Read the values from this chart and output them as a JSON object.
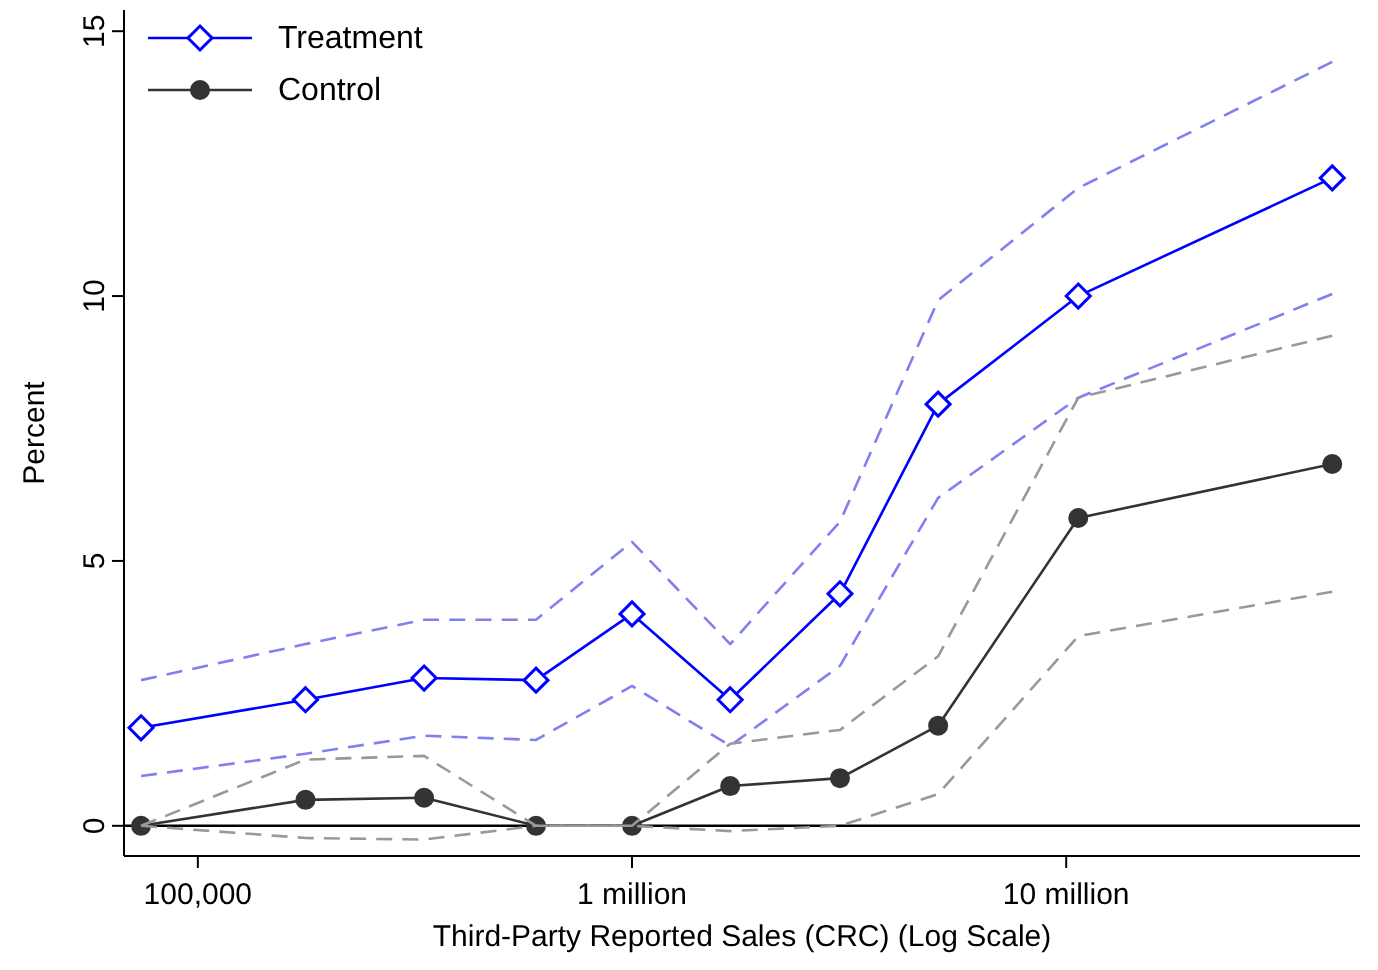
{
  "chart_data": {
    "type": "line",
    "xlabel": "Third-Party Reported Sales (CRC) (Log Scale)",
    "ylabel": "Percent",
    "log": "x",
    "x": [
      74000,
      177000,
      332000,
      601000,
      1000000,
      1683000,
      3013000,
      5070000,
      10660000,
      41000000
    ],
    "xlim": [
      67600,
      47500000
    ],
    "xticks": [
      {
        "value": 100000,
        "label": "100,000"
      },
      {
        "value": 1000000,
        "label": "1 million"
      },
      {
        "value": 10000000,
        "label": "10 million"
      }
    ],
    "ylim": [
      -0.57,
      15.4
    ],
    "yticks": [
      0,
      5,
      10,
      15
    ],
    "grid": false,
    "legend": "top left",
    "ref_lines": [
      {
        "axis": "y",
        "value": 0,
        "color": "#000000"
      }
    ],
    "series": [
      {
        "name": "Treatment",
        "color": "#0000ff",
        "marker": "diamond",
        "line_style": "solid",
        "values": [
          1.85,
          2.38,
          2.79,
          2.75,
          4.0,
          2.38,
          4.38,
          7.96,
          10.0,
          12.23
        ]
      },
      {
        "name": "Control",
        "color": "#333333",
        "marker": "circle",
        "line_style": "solid",
        "values": [
          0,
          0.49,
          0.53,
          0,
          0,
          0.75,
          0.9,
          1.89,
          5.81,
          6.83
        ]
      },
      {
        "color": "#8080f0",
        "marker": "none",
        "line_style": "dashed",
        "values": [
          2.75,
          3.43,
          3.89,
          3.89,
          5.36,
          3.43,
          5.74,
          9.92,
          12.04,
          14.42
        ]
      },
      {
        "color": "#8080f0",
        "marker": "none",
        "line_style": "dashed",
        "values": [
          0.94,
          1.36,
          1.7,
          1.62,
          2.64,
          1.51,
          3.02,
          6.19,
          8.08,
          10.04
        ]
      },
      {
        "color": "#999999",
        "marker": "none",
        "line_style": "dashed",
        "values": [
          0,
          1.25,
          1.32,
          0,
          0,
          1.55,
          1.81,
          3.2,
          8.08,
          9.25
        ]
      },
      {
        "color": "#999999",
        "marker": "none",
        "line_style": "dashed",
        "values": [
          0,
          -0.23,
          -0.26,
          0,
          0,
          -0.1,
          0,
          0.6,
          3.58,
          4.42
        ]
      }
    ]
  }
}
